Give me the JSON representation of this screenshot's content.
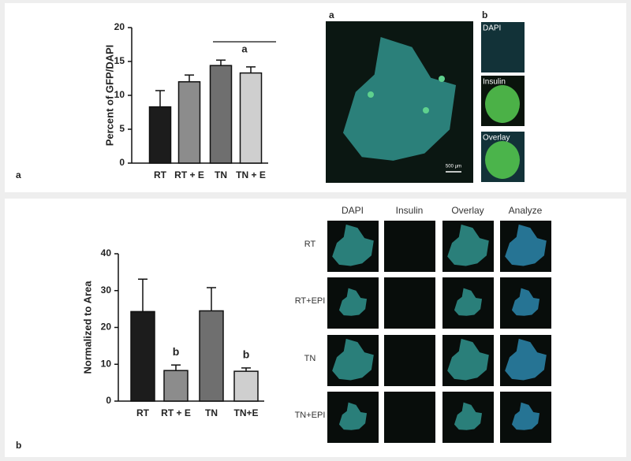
{
  "chart_data": [
    {
      "type": "bar",
      "ylabel": "Percent of GFP/DAPI",
      "categories": [
        "RT",
        "RT + E",
        "TN",
        "TN + E"
      ],
      "values": [
        8.3,
        12.0,
        14.4,
        13.3
      ],
      "errors": [
        2.4,
        1.0,
        0.8,
        0.9
      ],
      "colors": [
        "#1c1c1c",
        "#8c8c8c",
        "#6f6f6f",
        "#cfcfcf"
      ],
      "ylim": [
        0,
        20
      ],
      "yticks": [
        0,
        5,
        10,
        15,
        20
      ],
      "annotations": [
        "a"
      ]
    },
    {
      "type": "bar",
      "ylabel": "Normalized to Area",
      "categories": [
        "RT",
        "RT + E",
        "TN",
        "TN+E"
      ],
      "values": [
        24.3,
        8.3,
        24.5,
        8.1
      ],
      "errors": [
        8.8,
        1.5,
        6.3,
        0.9
      ],
      "colors": [
        "#1c1c1c",
        "#8c8c8c",
        "#6f6f6f",
        "#cfcfcf"
      ],
      "ylim": [
        0,
        40
      ],
      "yticks": [
        0,
        10,
        20,
        30,
        40
      ],
      "annotations": [
        "b",
        "b"
      ]
    }
  ],
  "panel_labels": [
    "a",
    "b"
  ],
  "top_images": {
    "labels": [
      "a",
      "b"
    ],
    "insets": [
      "DAPI",
      "Insulin",
      "Overlay"
    ],
    "scale": "500 µm"
  },
  "grid_images": {
    "columns": [
      "DAPI",
      "Insulin",
      "Overlay",
      "Analyze"
    ],
    "rows": [
      "RT",
      "RT+EPI",
      "TN",
      "TN+EPI"
    ]
  }
}
